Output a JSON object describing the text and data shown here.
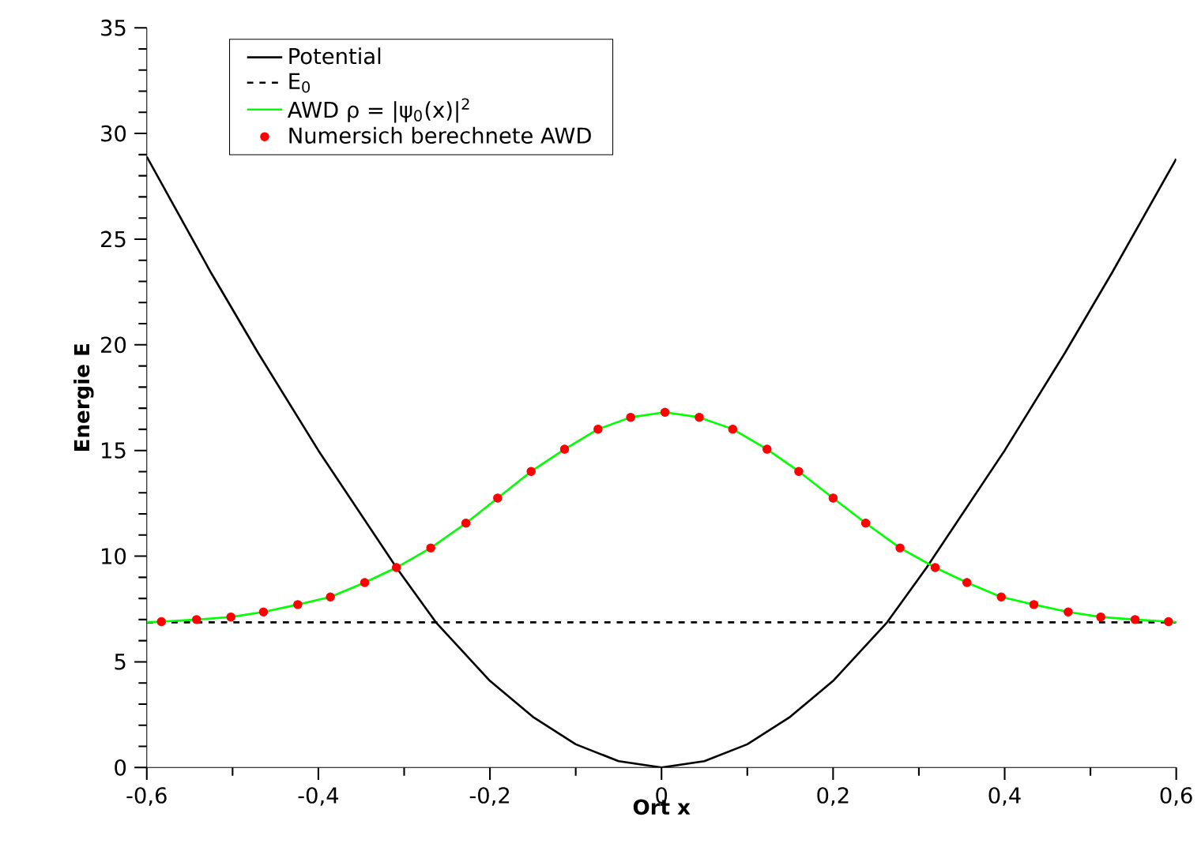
{
  "chart_data": {
    "type": "line",
    "xlabel": "Ort x",
    "ylabel": "Energie E",
    "xlim": [
      -0.6,
      0.6
    ],
    "ylim": [
      0,
      35
    ],
    "xticks": [
      {
        "value": -0.6,
        "label": "-0,6"
      },
      {
        "value": -0.4,
        "label": "-0,4"
      },
      {
        "value": -0.2,
        "label": "-0,2"
      },
      {
        "value": 0,
        "label": "0"
      },
      {
        "value": 0.2,
        "label": "0,2"
      },
      {
        "value": 0.4,
        "label": "0,4"
      },
      {
        "value": 0.6,
        "label": "0,6"
      }
    ],
    "yticks": [
      0,
      5,
      10,
      15,
      20,
      25,
      30,
      35
    ],
    "legend": "top left",
    "grid": false,
    "series": [
      {
        "name": "Potential",
        "color": "#000000",
        "line_style": "solid",
        "marker": "none",
        "x": [
          -0.6,
          -0.525,
          -0.47,
          -0.4,
          -0.309,
          -0.263,
          -0.2,
          -0.15,
          -0.1,
          -0.05,
          0,
          0.05,
          0.1,
          0.15,
          0.2,
          0.263,
          0.309,
          0.4,
          0.47,
          0.525,
          0.6
        ],
        "values": [
          28.9,
          23.4,
          19.6,
          15.0,
          9.46,
          6.87,
          4.1,
          2.4,
          1.1,
          0.3,
          0,
          0.3,
          1.1,
          2.4,
          4.1,
          6.87,
          9.46,
          15.0,
          19.6,
          23.4,
          28.8
        ]
      },
      {
        "name": "E$_{0}$",
        "color": "#000000",
        "line_style": "dashed",
        "marker": "none",
        "x": [
          -0.6,
          0.6
        ],
        "values": [
          6.87,
          6.87
        ]
      },
      {
        "name": "AWD ρ = |ψ$_{0}$(x)|$^{2}$",
        "color": "#00ff00",
        "line_style": "solid",
        "marker": "none",
        "x": [
          -0.6,
          -0.583,
          -0.542,
          -0.502,
          -0.464,
          -0.424,
          -0.386,
          -0.346,
          -0.309,
          -0.269,
          -0.228,
          -0.191,
          -0.152,
          -0.113,
          -0.074,
          -0.036,
          0.004,
          0.044,
          0.083,
          0.123,
          0.16,
          0.2,
          0.238,
          0.278,
          0.319,
          0.356,
          0.396,
          0.434,
          0.474,
          0.512,
          0.552,
          0.591,
          0.6
        ],
        "values": [
          6.88,
          6.9,
          7.0,
          7.12,
          7.36,
          7.71,
          8.07,
          8.75,
          9.46,
          10.39,
          11.56,
          12.75,
          14.01,
          15.06,
          16.01,
          16.57,
          16.81,
          16.57,
          16.01,
          15.06,
          14.01,
          12.75,
          11.56,
          10.39,
          9.46,
          8.75,
          8.07,
          7.71,
          7.36,
          7.12,
          7.0,
          6.9,
          6.88
        ]
      },
      {
        "name": "Numersich berechnete AWD",
        "type": "scatter",
        "color": "#ff0000",
        "marker": "circle",
        "x": [
          -0.583,
          -0.542,
          -0.502,
          -0.464,
          -0.424,
          -0.386,
          -0.346,
          -0.309,
          -0.269,
          -0.228,
          -0.191,
          -0.152,
          -0.113,
          -0.074,
          -0.036,
          0.004,
          0.044,
          0.083,
          0.123,
          0.16,
          0.2,
          0.238,
          0.278,
          0.319,
          0.356,
          0.396,
          0.434,
          0.474,
          0.512,
          0.552,
          0.591
        ],
        "values": [
          6.9,
          7.0,
          7.12,
          7.36,
          7.71,
          8.07,
          8.75,
          9.46,
          10.39,
          11.56,
          12.75,
          14.01,
          15.06,
          16.01,
          16.57,
          16.81,
          16.57,
          16.01,
          15.06,
          14.01,
          12.75,
          11.56,
          10.39,
          9.46,
          8.75,
          8.07,
          7.71,
          7.36,
          7.12,
          7.0,
          6.9
        ]
      }
    ]
  }
}
